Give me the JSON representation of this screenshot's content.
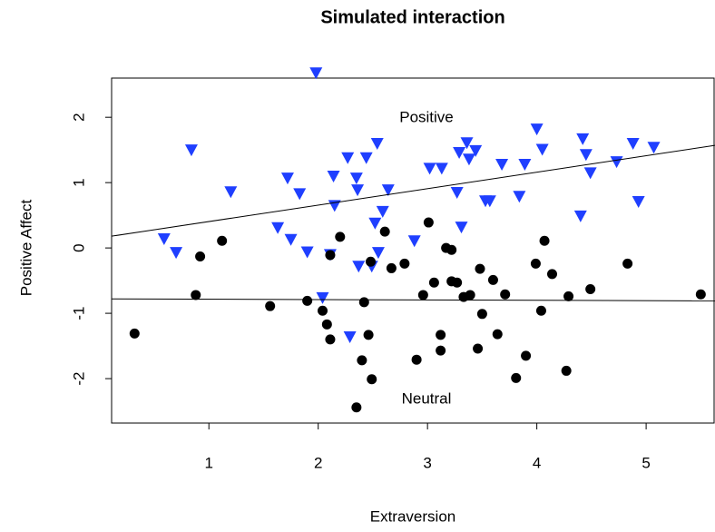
{
  "chart_data": {
    "type": "scatter",
    "title": "Simulated interaction",
    "x_label": "Extraversion",
    "y_label": "Positive Affect",
    "xlim": [
      0.11,
      5.63
    ],
    "ylim": [
      -2.68,
      2.6
    ],
    "xticks": [
      1,
      2,
      3,
      4,
      5
    ],
    "yticks": [
      -2,
      -1,
      0,
      1,
      2
    ],
    "grid": false,
    "series": [
      {
        "name": "Positive",
        "color": "#1f3fff",
        "marker": "triangle-down",
        "x": [
          0.59,
          0.7,
          0.84,
          1.2,
          1.63,
          1.72,
          1.75,
          1.83,
          1.9,
          1.98,
          2.04,
          2.11,
          2.14,
          2.15,
          2.27,
          2.29,
          2.35,
          2.36,
          2.37,
          2.44,
          2.49,
          2.52,
          2.54,
          2.55,
          2.59,
          2.64,
          2.88,
          3.02,
          3.13,
          3.27,
          3.29,
          3.31,
          3.36,
          3.38,
          3.44,
          3.53,
          3.57,
          3.68,
          3.84,
          3.89,
          4.0,
          4.05,
          4.4,
          4.42,
          4.45,
          4.49,
          4.73,
          4.88,
          4.93,
          5.07
        ],
        "values": [
          0.14,
          -0.07,
          1.5,
          0.86,
          0.31,
          1.07,
          0.13,
          0.83,
          -0.06,
          2.68,
          -0.76,
          -0.1,
          1.1,
          0.65,
          1.38,
          -1.36,
          1.07,
          0.89,
          -0.28,
          1.38,
          -0.28,
          0.38,
          1.6,
          -0.07,
          0.56,
          0.89,
          0.11,
          1.22,
          1.22,
          0.85,
          1.46,
          0.32,
          1.61,
          1.36,
          1.49,
          0.72,
          0.72,
          1.28,
          0.79,
          1.28,
          1.82,
          1.51,
          0.49,
          1.67,
          1.43,
          1.15,
          1.32,
          1.6,
          0.71,
          1.54
        ],
        "fit": {
          "x": [
            0.11,
            5.63
          ],
          "y": [
            0.18,
            1.57
          ]
        }
      },
      {
        "name": "Neutral",
        "color": "#000000",
        "marker": "circle",
        "x": [
          0.32,
          0.88,
          0.92,
          1.12,
          1.56,
          1.9,
          2.04,
          2.08,
          2.11,
          2.11,
          2.2,
          2.35,
          2.4,
          2.42,
          2.46,
          2.48,
          2.49,
          2.61,
          2.67,
          2.79,
          2.9,
          2.96,
          3.01,
          3.06,
          3.12,
          3.12,
          3.17,
          3.22,
          3.22,
          3.27,
          3.33,
          3.39,
          3.46,
          3.48,
          3.5,
          3.6,
          3.64,
          3.71,
          3.81,
          3.9,
          3.99,
          4.04,
          4.07,
          4.14,
          4.29,
          4.27,
          4.49,
          4.83,
          5.5
        ],
        "values": [
          -1.31,
          -0.72,
          -0.13,
          0.11,
          -0.89,
          -0.81,
          -0.96,
          -1.17,
          -1.4,
          -0.11,
          0.17,
          -2.44,
          -1.72,
          -0.83,
          -1.33,
          -0.21,
          -2.01,
          0.25,
          -0.31,
          -0.24,
          -1.71,
          -0.72,
          0.39,
          -0.53,
          -1.33,
          -1.57,
          0.0,
          -0.03,
          -0.51,
          -0.53,
          -0.75,
          -0.72,
          -1.54,
          -0.32,
          -1.01,
          -0.49,
          -1.32,
          -0.71,
          -1.99,
          -1.65,
          -0.24,
          -0.96,
          0.11,
          -0.4,
          -0.74,
          -1.88,
          -0.63,
          -0.24,
          -0.71
        ],
        "fit": {
          "x": [
            0.11,
            5.63
          ],
          "y": [
            -0.78,
            -0.81
          ]
        }
      }
    ]
  }
}
